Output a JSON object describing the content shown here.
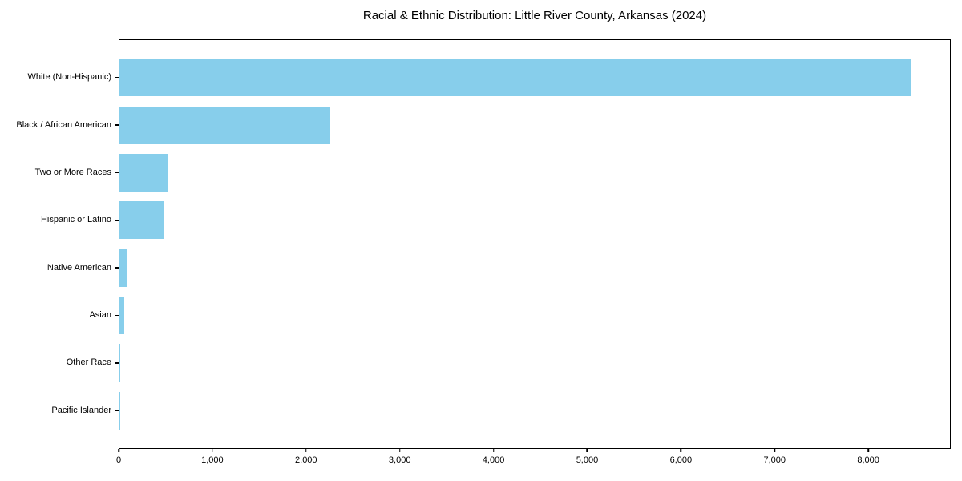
{
  "figure": {
    "background_color": "#ffffff",
    "text_color": "#000000"
  },
  "chart_data": {
    "type": "bar",
    "orientation": "horizontal",
    "title": "Racial & Ethnic Distribution: Little River County, Arkansas (2024)",
    "categories": [
      "White (Non-Hispanic)",
      "Black / African American",
      "Two or More Races",
      "Hispanic or Latino",
      "Native American",
      "Asian",
      "Other Race",
      "Pacific Islander"
    ],
    "values": [
      8460,
      2255,
      515,
      480,
      75,
      48,
      10,
      4
    ],
    "bar_color": "#87CEEB",
    "xlabel": "",
    "ylabel": "",
    "xlim": [
      0,
      8880
    ],
    "xticks": [
      0,
      1000,
      2000,
      3000,
      4000,
      5000,
      6000,
      7000,
      8000
    ],
    "xtick_labels": [
      "0",
      "1,000",
      "2,000",
      "3,000",
      "4,000",
      "5,000",
      "6,000",
      "7,000",
      "8,000"
    ],
    "grid": false,
    "legend_position": "none"
  }
}
